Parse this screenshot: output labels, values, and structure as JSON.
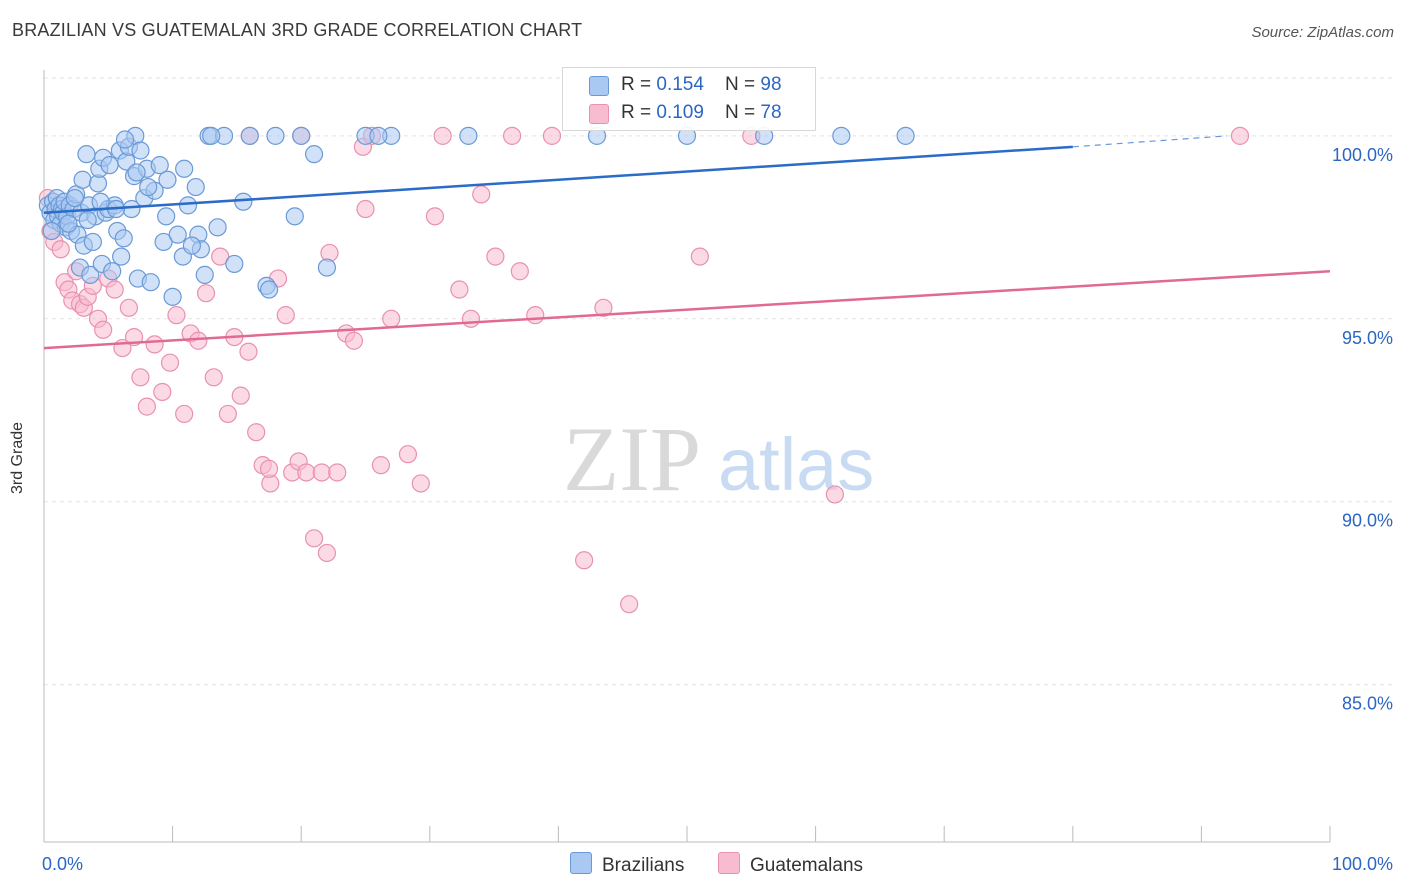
{
  "title": "BRAZILIAN VS GUATEMALAN 3RD GRADE CORRELATION CHART",
  "source": "Source: ZipAtlas.com",
  "watermark": {
    "zip": "ZIP",
    "atlas": "atlas"
  },
  "stats": {
    "rows": [
      {
        "r_label": "R = ",
        "r_value": "0.154",
        "n_label": "N = ",
        "n_value": "98"
      },
      {
        "r_label": "R = ",
        "r_value": "0.109",
        "n_label": "N = ",
        "n_value": "78"
      }
    ]
  },
  "chart_data": {
    "type": "scatter",
    "title": "BRAZILIAN VS GUATEMALAN 3RD GRADE CORRELATION CHART",
    "xlabel": "",
    "ylabel": "3rd Grade",
    "xlim": [
      0,
      100
    ],
    "ylim": [
      80.7,
      101.8
    ],
    "x_tick_labels": [
      {
        "value": 0,
        "label": "0.0%"
      },
      {
        "value": 100,
        "label": "100.0%"
      }
    ],
    "y_tick_labels": [
      {
        "value": 100,
        "label": "100.0%"
      },
      {
        "value": 95,
        "label": "95.0%"
      },
      {
        "value": 90,
        "label": "90.0%"
      },
      {
        "value": 85,
        "label": "85.0%"
      }
    ],
    "grid": true,
    "legend_position": "bottom",
    "colors": {
      "brazilians_fill": "#a9c8f2",
      "brazilians_stroke": "#6a9ad6",
      "brazilians_line": "#2a6cc8",
      "guatemalans_fill": "#f7bcd0",
      "guatemalans_stroke": "#e891b0",
      "guatemalans_line": "#e06a95",
      "value_text": "#2b66c4"
    },
    "series": [
      {
        "name": "Brazilians",
        "r": 0.154,
        "n": 98,
        "trend": {
          "x0": 0,
          "y0": 97.9,
          "x1": 80,
          "y1": 99.7,
          "dash_to_x": 92,
          "dash_to_y": 100.0
        },
        "points": [
          [
            0.3,
            98.1
          ],
          [
            0.5,
            97.9
          ],
          [
            0.7,
            98.2
          ],
          [
            0.8,
            97.7
          ],
          [
            0.9,
            98.0
          ],
          [
            1.0,
            98.3
          ],
          [
            1.1,
            97.8
          ],
          [
            1.2,
            98.1
          ],
          [
            1.3,
            97.6
          ],
          [
            1.4,
            98.0
          ],
          [
            1.5,
            97.9
          ],
          [
            1.6,
            98.2
          ],
          [
            1.7,
            97.5
          ],
          [
            1.8,
            97.8
          ],
          [
            2.0,
            98.1
          ],
          [
            2.1,
            97.4
          ],
          [
            2.3,
            98.0
          ],
          [
            2.5,
            98.4
          ],
          [
            2.6,
            97.3
          ],
          [
            2.8,
            96.4
          ],
          [
            2.9,
            97.9
          ],
          [
            3.0,
            98.8
          ],
          [
            3.1,
            97.0
          ],
          [
            3.3,
            99.5
          ],
          [
            3.5,
            98.1
          ],
          [
            3.6,
            96.2
          ],
          [
            3.8,
            97.1
          ],
          [
            4.0,
            97.8
          ],
          [
            4.2,
            98.7
          ],
          [
            4.3,
            99.1
          ],
          [
            4.5,
            96.5
          ],
          [
            4.6,
            99.4
          ],
          [
            4.8,
            97.9
          ],
          [
            5.0,
            98.0
          ],
          [
            5.1,
            99.2
          ],
          [
            5.3,
            96.3
          ],
          [
            5.5,
            98.1
          ],
          [
            5.7,
            97.4
          ],
          [
            5.9,
            99.6
          ],
          [
            6.0,
            96.7
          ],
          [
            6.2,
            97.2
          ],
          [
            6.4,
            99.3
          ],
          [
            6.6,
            99.7
          ],
          [
            6.8,
            98.0
          ],
          [
            7.0,
            98.9
          ],
          [
            7.1,
            100.0
          ],
          [
            7.3,
            96.1
          ],
          [
            7.5,
            99.6
          ],
          [
            7.8,
            98.3
          ],
          [
            8.0,
            99.1
          ],
          [
            8.3,
            96.0
          ],
          [
            8.6,
            98.5
          ],
          [
            9.0,
            99.2
          ],
          [
            9.3,
            97.1
          ],
          [
            9.6,
            98.8
          ],
          [
            10.0,
            95.6
          ],
          [
            10.4,
            97.3
          ],
          [
            10.8,
            96.7
          ],
          [
            11.2,
            98.1
          ],
          [
            11.8,
            98.6
          ],
          [
            12.0,
            97.3
          ],
          [
            12.2,
            96.9
          ],
          [
            12.5,
            96.2
          ],
          [
            12.8,
            100.0
          ],
          [
            13.5,
            97.5
          ],
          [
            14.0,
            100.0
          ],
          [
            15.5,
            98.2
          ],
          [
            16.0,
            100.0
          ],
          [
            17.3,
            95.9
          ],
          [
            17.5,
            95.8
          ],
          [
            18.0,
            100.0
          ],
          [
            19.5,
            97.8
          ],
          [
            20.0,
            100.0
          ],
          [
            22.0,
            96.4
          ],
          [
            25.0,
            100.0
          ],
          [
            27.0,
            100.0
          ],
          [
            33.0,
            100.0
          ],
          [
            43.0,
            100.0
          ],
          [
            50.0,
            100.0
          ],
          [
            56.0,
            100.0
          ],
          [
            62.0,
            100.0
          ],
          [
            67.0,
            100.0
          ],
          [
            0.6,
            97.4
          ],
          [
            1.9,
            97.6
          ],
          [
            2.4,
            98.3
          ],
          [
            3.4,
            97.7
          ],
          [
            4.4,
            98.2
          ],
          [
            5.6,
            98.0
          ],
          [
            6.3,
            99.9
          ],
          [
            7.2,
            99.0
          ],
          [
            8.1,
            98.6
          ],
          [
            9.5,
            97.8
          ],
          [
            10.9,
            99.1
          ],
          [
            11.5,
            97.0
          ],
          [
            13.0,
            100.0
          ],
          [
            14.8,
            96.5
          ],
          [
            21.0,
            99.5
          ],
          [
            26.0,
            100.0
          ]
        ]
      },
      {
        "name": "Guatemalans",
        "r": 0.109,
        "n": 78,
        "trend": {
          "x0": 0,
          "y0": 94.2,
          "x1": 100,
          "y1": 96.3
        },
        "points": [
          [
            0.3,
            98.3
          ],
          [
            0.5,
            97.4
          ],
          [
            0.8,
            97.1
          ],
          [
            1.0,
            98.0
          ],
          [
            1.3,
            96.9
          ],
          [
            1.6,
            96.0
          ],
          [
            1.9,
            95.8
          ],
          [
            2.2,
            95.5
          ],
          [
            2.5,
            96.3
          ],
          [
            2.8,
            95.4
          ],
          [
            3.1,
            95.3
          ],
          [
            3.4,
            95.6
          ],
          [
            3.8,
            95.9
          ],
          [
            4.2,
            95.0
          ],
          [
            4.6,
            94.7
          ],
          [
            5.0,
            96.1
          ],
          [
            5.5,
            95.8
          ],
          [
            6.1,
            94.2
          ],
          [
            6.6,
            95.3
          ],
          [
            7.0,
            94.5
          ],
          [
            7.5,
            93.4
          ],
          [
            8.0,
            92.6
          ],
          [
            8.6,
            94.3
          ],
          [
            9.2,
            93.0
          ],
          [
            9.8,
            93.8
          ],
          [
            10.3,
            95.1
          ],
          [
            10.9,
            92.4
          ],
          [
            11.4,
            94.6
          ],
          [
            12.0,
            94.4
          ],
          [
            12.6,
            95.7
          ],
          [
            13.2,
            93.4
          ],
          [
            13.7,
            96.7
          ],
          [
            14.3,
            92.4
          ],
          [
            14.8,
            94.5
          ],
          [
            15.3,
            92.9
          ],
          [
            15.9,
            94.1
          ],
          [
            16.5,
            91.9
          ],
          [
            17.0,
            91.0
          ],
          [
            17.6,
            90.5
          ],
          [
            18.2,
            96.1
          ],
          [
            18.8,
            95.1
          ],
          [
            19.3,
            90.8
          ],
          [
            19.8,
            91.1
          ],
          [
            20.4,
            90.8
          ],
          [
            21.0,
            89.0
          ],
          [
            21.6,
            90.8
          ],
          [
            22.2,
            96.8
          ],
          [
            22.8,
            90.8
          ],
          [
            23.5,
            94.6
          ],
          [
            24.1,
            94.4
          ],
          [
            24.8,
            99.7
          ],
          [
            25.5,
            100.0
          ],
          [
            26.2,
            91.0
          ],
          [
            27.0,
            95.0
          ],
          [
            28.3,
            91.3
          ],
          [
            29.3,
            90.5
          ],
          [
            30.4,
            97.8
          ],
          [
            31.0,
            100.0
          ],
          [
            32.3,
            95.8
          ],
          [
            33.2,
            95.0
          ],
          [
            34.0,
            98.4
          ],
          [
            35.1,
            96.7
          ],
          [
            36.4,
            100.0
          ],
          [
            37.0,
            96.3
          ],
          [
            38.2,
            95.1
          ],
          [
            39.5,
            100.0
          ],
          [
            42.0,
            88.4
          ],
          [
            43.5,
            95.3
          ],
          [
            45.5,
            87.2
          ],
          [
            51.0,
            96.7
          ],
          [
            55.0,
            100.0
          ],
          [
            61.5,
            90.2
          ],
          [
            93.0,
            100.0
          ],
          [
            20.0,
            100.0
          ],
          [
            25.0,
            98.0
          ],
          [
            17.5,
            90.9
          ],
          [
            22.0,
            88.6
          ],
          [
            16.0,
            100.0
          ]
        ]
      }
    ]
  },
  "legend": {
    "items": [
      {
        "label": "Brazilians"
      },
      {
        "label": "Guatemalans"
      }
    ]
  }
}
